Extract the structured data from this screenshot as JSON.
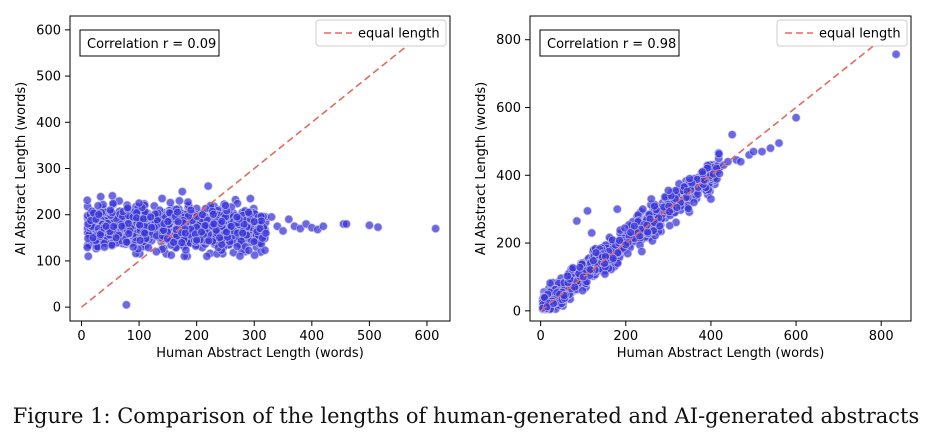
{
  "caption": "Figure 1: Comparison of the lengths of human-generated and AI-generated abstracts",
  "colors": {
    "point_fill": "#3b36d8",
    "point_edge": "#b8b8f0",
    "equal_line": "#e06b5f",
    "frame": "#000000"
  },
  "chart_data": [
    {
      "type": "scatter",
      "title": "",
      "xlabel": "Human Abstract Length (words)",
      "ylabel": "AI Abstract Length (words)",
      "xlim": [
        -20,
        640
      ],
      "ylim": [
        -30,
        630
      ],
      "xticks": [
        0,
        100,
        200,
        300,
        400,
        500,
        600
      ],
      "yticks": [
        0,
        100,
        200,
        300,
        400,
        500,
        600
      ],
      "annotation": "Correlation r = 0.09",
      "legend": {
        "label": "equal length",
        "position": "top-right"
      },
      "reference_line": [
        [
          0,
          0
        ],
        [
          620,
          620
        ]
      ],
      "cluster": {
        "x_range": [
          10,
          320
        ],
        "y_center": 170,
        "y_spread": 30,
        "count": 900
      },
      "points": [
        [
          20,
          150
        ],
        [
          25,
          190
        ],
        [
          30,
          200
        ],
        [
          40,
          130
        ],
        [
          50,
          210
        ],
        [
          60,
          150
        ],
        [
          70,
          175
        ],
        [
          80,
          215
        ],
        [
          90,
          130
        ],
        [
          100,
          225
        ],
        [
          110,
          160
        ],
        [
          120,
          195
        ],
        [
          130,
          120
        ],
        [
          140,
          235
        ],
        [
          150,
          185
        ],
        [
          160,
          140
        ],
        [
          170,
          230
        ],
        [
          175,
          250
        ],
        [
          180,
          160
        ],
        [
          190,
          210
        ],
        [
          200,
          145
        ],
        [
          210,
          200
        ],
        [
          220,
          262
        ],
        [
          230,
          180
        ],
        [
          240,
          150
        ],
        [
          250,
          220
        ],
        [
          260,
          175
        ],
        [
          270,
          195
        ],
        [
          280,
          160
        ],
        [
          290,
          205
        ],
        [
          300,
          185
        ],
        [
          310,
          170
        ],
        [
          320,
          160
        ],
        [
          330,
          195
        ],
        [
          340,
          175
        ],
        [
          350,
          165
        ],
        [
          360,
          190
        ],
        [
          370,
          175
        ],
        [
          380,
          170
        ],
        [
          390,
          180
        ],
        [
          400,
          172
        ],
        [
          410,
          168
        ],
        [
          420,
          175
        ],
        [
          455,
          180
        ],
        [
          460,
          180
        ],
        [
          500,
          177
        ],
        [
          515,
          173
        ],
        [
          615,
          170
        ],
        [
          78,
          5
        ]
      ]
    },
    {
      "type": "scatter",
      "title": "",
      "xlabel": "Human Abstract Length (words)",
      "ylabel": "AI Abstract Length (words)",
      "xlim": [
        -25,
        870
      ],
      "ylim": [
        -30,
        870
      ],
      "xticks": [
        0,
        200,
        400,
        600,
        800
      ],
      "yticks": [
        0,
        200,
        400,
        600,
        800
      ],
      "annotation": "Correlation r = 0.98",
      "legend": {
        "label": "equal length",
        "position": "top-right"
      },
      "reference_line": [
        [
          0,
          0
        ],
        [
          840,
          840
        ]
      ],
      "cluster": {
        "x_range": [
          5,
          420
        ],
        "slope": 0.98,
        "y_spread": 28,
        "count": 700
      },
      "points": [
        [
          5,
          8
        ],
        [
          15,
          12
        ],
        [
          30,
          22
        ],
        [
          55,
          45
        ],
        [
          80,
          70
        ],
        [
          85,
          265
        ],
        [
          100,
          100
        ],
        [
          110,
          295
        ],
        [
          120,
          230
        ],
        [
          150,
          140
        ],
        [
          180,
          300
        ],
        [
          200,
          195
        ],
        [
          220,
          250
        ],
        [
          240,
          300
        ],
        [
          260,
          330
        ],
        [
          280,
          250
        ],
        [
          300,
          355
        ],
        [
          320,
          305
        ],
        [
          350,
          390
        ],
        [
          360,
          320
        ],
        [
          380,
          410
        ],
        [
          400,
          330
        ],
        [
          420,
          405
        ],
        [
          430,
          430
        ],
        [
          440,
          440
        ],
        [
          450,
          520
        ],
        [
          460,
          445
        ],
        [
          470,
          440
        ],
        [
          490,
          460
        ],
        [
          500,
          470
        ],
        [
          520,
          470
        ],
        [
          540,
          480
        ],
        [
          560,
          495
        ],
        [
          600,
          570
        ],
        [
          835,
          757
        ]
      ]
    }
  ]
}
